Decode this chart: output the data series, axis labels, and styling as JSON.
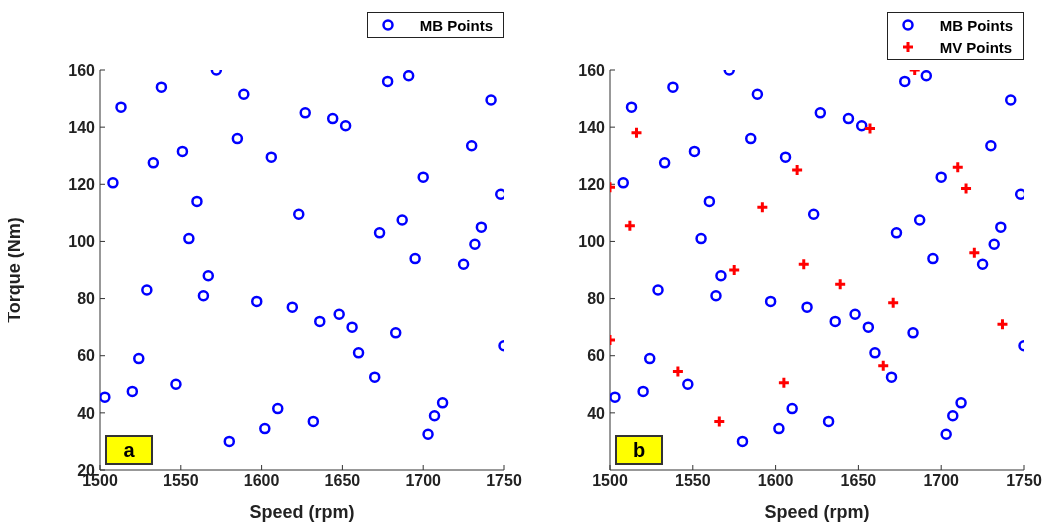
{
  "chart_data": [
    {
      "type": "scatter",
      "xlabel": "Speed (rpm)",
      "ylabel": "Torque (Nm)",
      "xlim": [
        1500,
        1750
      ],
      "xticks": [
        1500,
        1550,
        1600,
        1650,
        1700,
        1750
      ],
      "ylim": [
        20,
        160
      ],
      "yticks": [
        20,
        40,
        60,
        80,
        100,
        120,
        140,
        160
      ],
      "legend": "top right",
      "annotations": [
        "a"
      ],
      "series": [
        {
          "name": "MB Points",
          "color": "#0000ff",
          "marker": "circle",
          "x": [
            1503,
            1508,
            1513,
            1520,
            1524,
            1529,
            1533,
            1538,
            1547,
            1551,
            1555,
            1560,
            1564,
            1567,
            1572,
            1580,
            1585,
            1589,
            1597,
            1602,
            1606,
            1610,
            1619,
            1623,
            1627,
            1632,
            1636,
            1644,
            1648,
            1652,
            1656,
            1660,
            1670,
            1673,
            1678,
            1683,
            1687,
            1691,
            1695,
            1700,
            1703,
            1707,
            1712,
            1725,
            1732,
            1730,
            1736,
            1742,
            1748,
            1750
          ],
          "values": [
            45.5,
            120.5,
            147,
            47.5,
            59,
            83,
            127.5,
            154,
            50,
            131.5,
            101,
            114,
            81,
            88,
            160,
            30,
            136,
            151.5,
            79,
            34.5,
            129.5,
            41.5,
            77,
            109.5,
            145,
            37,
            72,
            143,
            74.5,
            140.5,
            70,
            61,
            52.5,
            103,
            156,
            68,
            107.5,
            158,
            94,
            122.5,
            32.5,
            39,
            43.5,
            92,
            99,
            133.5,
            105,
            149.5,
            116.5,
            63.5
          ]
        }
      ]
    },
    {
      "type": "scatter",
      "xlabel": "Speed (rpm)",
      "xlim": [
        1500,
        1750
      ],
      "xticks": [
        1500,
        1550,
        1600,
        1650,
        1700,
        1750
      ],
      "ylim": [
        20,
        160
      ],
      "yticks": [
        40,
        60,
        80,
        100,
        120,
        140,
        160
      ],
      "legend": "top right",
      "annotations": [
        "b"
      ],
      "series": [
        {
          "name": "MB Points",
          "color": "#0000ff",
          "marker": "circle",
          "x": [
            1503,
            1508,
            1513,
            1520,
            1524,
            1529,
            1533,
            1538,
            1547,
            1551,
            1555,
            1560,
            1564,
            1567,
            1572,
            1580,
            1585,
            1589,
            1597,
            1602,
            1606,
            1610,
            1619,
            1623,
            1627,
            1632,
            1636,
            1644,
            1648,
            1652,
            1656,
            1660,
            1670,
            1673,
            1678,
            1683,
            1687,
            1691,
            1695,
            1700,
            1703,
            1707,
            1712,
            1725,
            1732,
            1730,
            1736,
            1742,
            1748,
            1750
          ],
          "values": [
            45.5,
            120.5,
            147,
            47.5,
            59,
            83,
            127.5,
            154,
            50,
            131.5,
            101,
            114,
            81,
            88,
            160,
            30,
            136,
            151.5,
            79,
            34.5,
            129.5,
            41.5,
            77,
            109.5,
            145,
            37,
            72,
            143,
            74.5,
            140.5,
            70,
            61,
            52.5,
            103,
            156,
            68,
            107.5,
            158,
            94,
            122.5,
            32.5,
            39,
            43.5,
            92,
            99,
            133.5,
            105,
            149.5,
            116.5,
            63.5
          ]
        },
        {
          "name": "MV Points",
          "color": "#ff0000",
          "marker": "cross",
          "x": [
            1500,
            1500,
            1512,
            1516,
            1541,
            1566,
            1575,
            1592,
            1605,
            1613,
            1617,
            1639,
            1657,
            1665,
            1671,
            1684,
            1710,
            1715,
            1720,
            1737
          ],
          "values": [
            65.5,
            119,
            105.5,
            138,
            54.5,
            37,
            90,
            112,
            50.5,
            125,
            92,
            85,
            139.5,
            56.5,
            78.5,
            160,
            126,
            118.5,
            96,
            71
          ]
        }
      ]
    }
  ]
}
